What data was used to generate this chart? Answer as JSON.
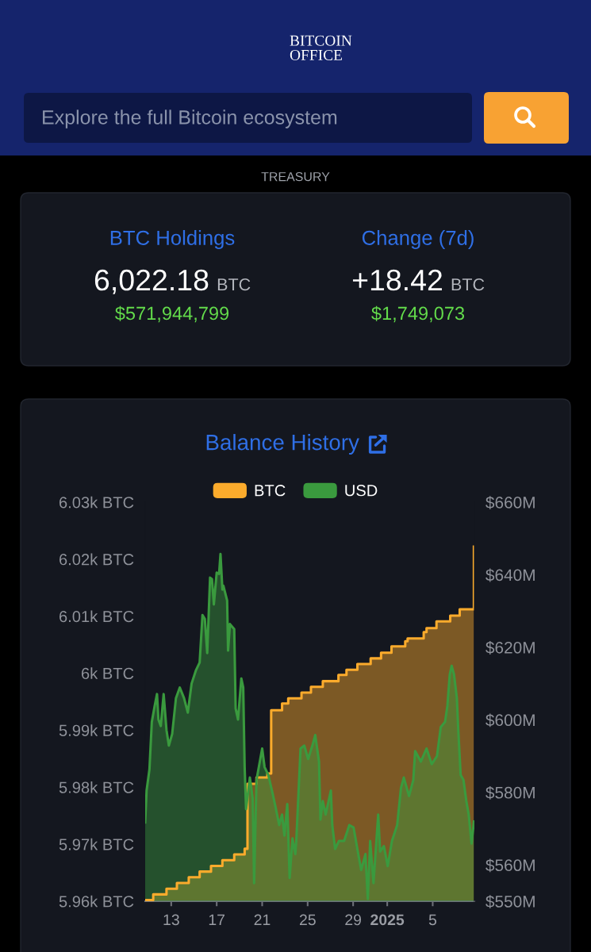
{
  "chart_data": [
    {
      "type": "other",
      "title": "BITCOIN OFFICE",
      "annotations": [
        "Explore the full Bitcoin ecosystem"
      ]
    },
    {
      "type": "other",
      "title": "TREASURY",
      "annotations": [
        "BTC Holdings",
        "6,022.18",
        "BTC",
        "$571,944,799",
        "Change (7d)",
        "+18.42",
        "BTC",
        "$1,749,073"
      ]
    },
    {
      "type": "area",
      "title": "Balance History",
      "series": [
        {
          "name": "BTC",
          "type": "area",
          "color": "#fbab2c",
          "x": [
            "2024-12-10T17:00",
            "2024-12-11T10:00",
            "2024-12-11T10:00",
            "2024-12-12T14:00",
            "2024-12-12T14:00",
            "2024-12-13T12:00",
            "2024-12-13T12:00",
            "2024-12-14T13:00",
            "2024-12-14T13:00",
            "2024-12-15T12:00",
            "2024-12-15T12:00",
            "2024-12-16T12:00",
            "2024-12-16T12:00",
            "2024-12-17T12:00",
            "2024-12-17T12:00",
            "2024-12-18T13:00",
            "2024-12-18T13:00",
            "2024-12-19T11:00",
            "2024-12-19T11:00",
            "2024-12-19T17:00",
            "2024-12-19T17:00",
            "2024-12-20T12:00",
            "2024-12-20T12:00",
            "2024-12-21T11:00",
            "2024-12-21T11:00",
            "2024-12-21T19:00",
            "2024-12-21T19:00",
            "2024-12-22T18:00",
            "2024-12-22T18:00",
            "2024-12-23T07:00",
            "2024-12-23T07:00",
            "2024-12-24T11:00",
            "2024-12-24T11:00",
            "2024-12-25T07:00",
            "2024-12-25T07:00",
            "2024-12-26T08:00",
            "2024-12-26T08:00",
            "2024-12-27T17:00",
            "2024-12-27T17:00",
            "2024-12-28T10:00",
            "2024-12-28T10:00",
            "2024-12-29T09:00",
            "2024-12-29T09:00",
            "2024-12-30T13:00",
            "2024-12-30T13:00",
            "2024-12-31T11:00",
            "2024-12-31T11:00",
            "2025-01-01T09:00",
            "2025-01-01T09:00",
            "2025-01-02T14:00",
            "2025-01-02T14:00",
            "2025-01-02T19:00",
            "2025-01-02T19:00",
            "2025-01-04T05:00",
            "2025-01-04T05:00",
            "2025-01-04T11:00",
            "2025-01-04T11:00",
            "2025-01-05T08:00",
            "2025-01-05T08:00",
            "2025-01-06T13:00",
            "2025-01-06T13:00",
            "2025-01-07T09:00",
            "2025-01-07T09:00",
            "2025-01-08T15:00",
            "2025-01-08T15:00"
          ],
          "values": [
            5960.2,
            5960.2,
            5961.2,
            5961.2,
            5962.2,
            5962.2,
            5963.2,
            5963.2,
            5964.2,
            5964.2,
            5965.2,
            5965.2,
            5966.2,
            5966.2,
            5967.2,
            5967.2,
            5968.2,
            5968.2,
            5969.2,
            5969.2,
            5980.6,
            5980.6,
            5981.7,
            5981.7,
            5982.4,
            5982.4,
            5993.5,
            5993.5,
            5994.7,
            5994.7,
            5995.6,
            5995.6,
            5996.6,
            5996.6,
            5997.6,
            5997.6,
            5998.6,
            5998.6,
            5999.7,
            5999.7,
            6000.6,
            6000.6,
            6001.6,
            6001.6,
            6002.6,
            6002.6,
            6003.6,
            6003.6,
            6004.7,
            6004.7,
            6005.6,
            6005.6,
            6006.1,
            6006.1,
            6007.2,
            6007.2,
            6007.9,
            6007.9,
            6009.1,
            6009.1,
            6010.1,
            6010.1,
            6011.2,
            6011.2,
            6022.2
          ]
        },
        {
          "name": "USD",
          "type": "area",
          "axis": "y2",
          "color": "#3a9a3e",
          "x": [
            "2024-12-10T17:00",
            "2024-12-10T20:00",
            "2024-12-11T02:00",
            "2024-12-11T07:00",
            "2024-12-11T13:00",
            "2024-12-11T18:00",
            "2024-12-11T21:00",
            "2024-12-12T02:00",
            "2024-12-12T08:00",
            "2024-12-12T14:00",
            "2024-12-12T19:00",
            "2024-12-13T02:00",
            "2024-12-13T10:00",
            "2024-12-13T18:00",
            "2024-12-14T03:00",
            "2024-12-14T11:00",
            "2024-12-14T19:00",
            "2024-12-15T04:00",
            "2024-12-15T12:00",
            "2024-12-15T18:00",
            "2024-12-15T23:00",
            "2024-12-16T04:00",
            "2024-12-16T10:00",
            "2024-12-16T14:00",
            "2024-12-16T18:00",
            "2024-12-17T00:00",
            "2024-12-17T05:00",
            "2024-12-17T08:00",
            "2024-12-17T12:00",
            "2024-12-17T14:00",
            "2024-12-17T22:00",
            "2024-12-18T00:00",
            "2024-12-18T04:00",
            "2024-12-18T13:00",
            "2024-12-18T16:00",
            "2024-12-18T21:00",
            "2024-12-19T04:00",
            "2024-12-19T08:00",
            "2024-12-19T11:00",
            "2024-12-19T14:00",
            "2024-12-19T22:00",
            "2024-12-20T04:00",
            "2024-12-20T07:00",
            "2024-12-20T12:00",
            "2024-12-21T00:00",
            "2024-12-21T05:00",
            "2024-12-21T13:00",
            "2024-12-21T22:00",
            "2024-12-22T04:00",
            "2024-12-22T12:00",
            "2024-12-22T18:00",
            "2024-12-22T23:00",
            "2024-12-23T05:00",
            "2024-12-23T10:00",
            "2024-12-23T16:00",
            "2024-12-23T22:00",
            "2024-12-24T00:00",
            "2024-12-24T09:00",
            "2024-12-24T17:00",
            "2024-12-25T01:00",
            "2024-12-25T10:00",
            "2024-12-25T16:00",
            "2024-12-26T00:00",
            "2024-12-26T03:00",
            "2024-12-26T08:00",
            "2024-12-26T14:00",
            "2024-12-27T01:00",
            "2024-12-27T04:00",
            "2024-12-27T10:00",
            "2024-12-27T18:00",
            "2024-12-28T05:00",
            "2024-12-28T16:00",
            "2024-12-29T01:00",
            "2024-12-29T12:00",
            "2024-12-29T17:00",
            "2024-12-30T02:00",
            "2024-12-30T07:00",
            "2024-12-30T12:00",
            "2024-12-30T19:00",
            "2024-12-31T05:00",
            "2024-12-31T09:00",
            "2024-12-31T17:00",
            "2025-01-01T01:00",
            "2025-01-01T10:00",
            "2025-01-01T21:00",
            "2025-01-02T05:00",
            "2025-01-02T11:00",
            "2025-01-02T22:00",
            "2025-01-03T07:00",
            "2025-01-03T11:00",
            "2025-01-03T23:00",
            "2025-01-04T11:00",
            "2025-01-04T22:00",
            "2025-01-05T09:00",
            "2025-01-05T17:00",
            "2025-01-06T02:00",
            "2025-01-06T07:00",
            "2025-01-06T12:00",
            "2025-01-06T16:00",
            "2025-01-06T21:00",
            "2025-01-07T03:00",
            "2025-01-07T06:00",
            "2025-01-07T11:00",
            "2025-01-07T17:00",
            "2025-01-07T23:00",
            "2025-01-08T04:00",
            "2025-01-08T10:00",
            "2025-01-08T15:00"
          ],
          "values": [
            571.7,
            580.5,
            586.3,
            599.4,
            603.8,
            607.1,
            600.1,
            598.3,
            607.1,
            597.2,
            592.9,
            596.1,
            606.0,
            608.9,
            606.0,
            602.0,
            610.0,
            613.6,
            615.8,
            628.9,
            627.8,
            618.4,
            639.2,
            638.8,
            631.8,
            640.6,
            640.2,
            645.7,
            635.9,
            637.0,
            632.9,
            619.1,
            626.4,
            625.0,
            603.1,
            600.1,
            611.4,
            608.9,
            587.0,
            575.4,
            584.1,
            578.3,
            555.0,
            583.4,
            592.1,
            587.0,
            584.8,
            579.7,
            576.1,
            571.0,
            573.9,
            568.1,
            576.8,
            556.4,
            567.3,
            563.0,
            566.6,
            592.1,
            592.9,
            589.2,
            592.9,
            595.8,
            588.5,
            572.5,
            577.6,
            573.9,
            580.5,
            571.0,
            564.4,
            566.6,
            566.6,
            571.0,
            570.3,
            562.2,
            558.6,
            563.0,
            550.6,
            566.6,
            555.0,
            573.9,
            563.7,
            565.2,
            559.7,
            566.6,
            571.0,
            581.2,
            584.1,
            579.0,
            583.4,
            591.4,
            588.5,
            592.1,
            587.8,
            590.0,
            598.0,
            599.4,
            603.8,
            612.5,
            614.9,
            612.5,
            606.0,
            597.2,
            584.8,
            583.4,
            577.6,
            573.9,
            565.9,
            572.0
          ]
        }
      ],
      "xlim": [
        "2024-12-10T17:00",
        "2025-01-08T16:00"
      ],
      "xticks": [
        {
          "value": "2024-12-13",
          "label": "13"
        },
        {
          "value": "2024-12-17",
          "label": "17"
        },
        {
          "value": "2024-12-21",
          "label": "21"
        },
        {
          "value": "2024-12-25",
          "label": "25"
        },
        {
          "value": "2024-12-29",
          "label": "29"
        },
        {
          "value": "2025-01-01",
          "label": "2025"
        },
        {
          "value": "2025-01-05",
          "label": "5"
        }
      ],
      "ylim": [
        5960,
        6030
      ],
      "yticks": [
        {
          "value": 5960,
          "label": "5.96k BTC"
        },
        {
          "value": 5970,
          "label": "5.97k BTC"
        },
        {
          "value": 5980,
          "label": "5.98k BTC"
        },
        {
          "value": 5990,
          "label": "5.99k BTC"
        },
        {
          "value": 6000,
          "label": "6k BTC"
        },
        {
          "value": 6010,
          "label": "6.01k BTC"
        },
        {
          "value": 6020,
          "label": "6.02k BTC"
        },
        {
          "value": 6030,
          "label": "6.03k BTC"
        }
      ],
      "y2lim": [
        550,
        660
      ],
      "y2ticks": [
        {
          "value": 550,
          "label": "$550M"
        },
        {
          "value": 560,
          "label": "$560M"
        },
        {
          "value": 580,
          "label": "$580M"
        },
        {
          "value": 600,
          "label": "$600M"
        },
        {
          "value": 620,
          "label": "$620M"
        },
        {
          "value": 640,
          "label": "$640M"
        },
        {
          "value": 660,
          "label": "$660M"
        }
      ],
      "legend": "top"
    }
  ]
}
